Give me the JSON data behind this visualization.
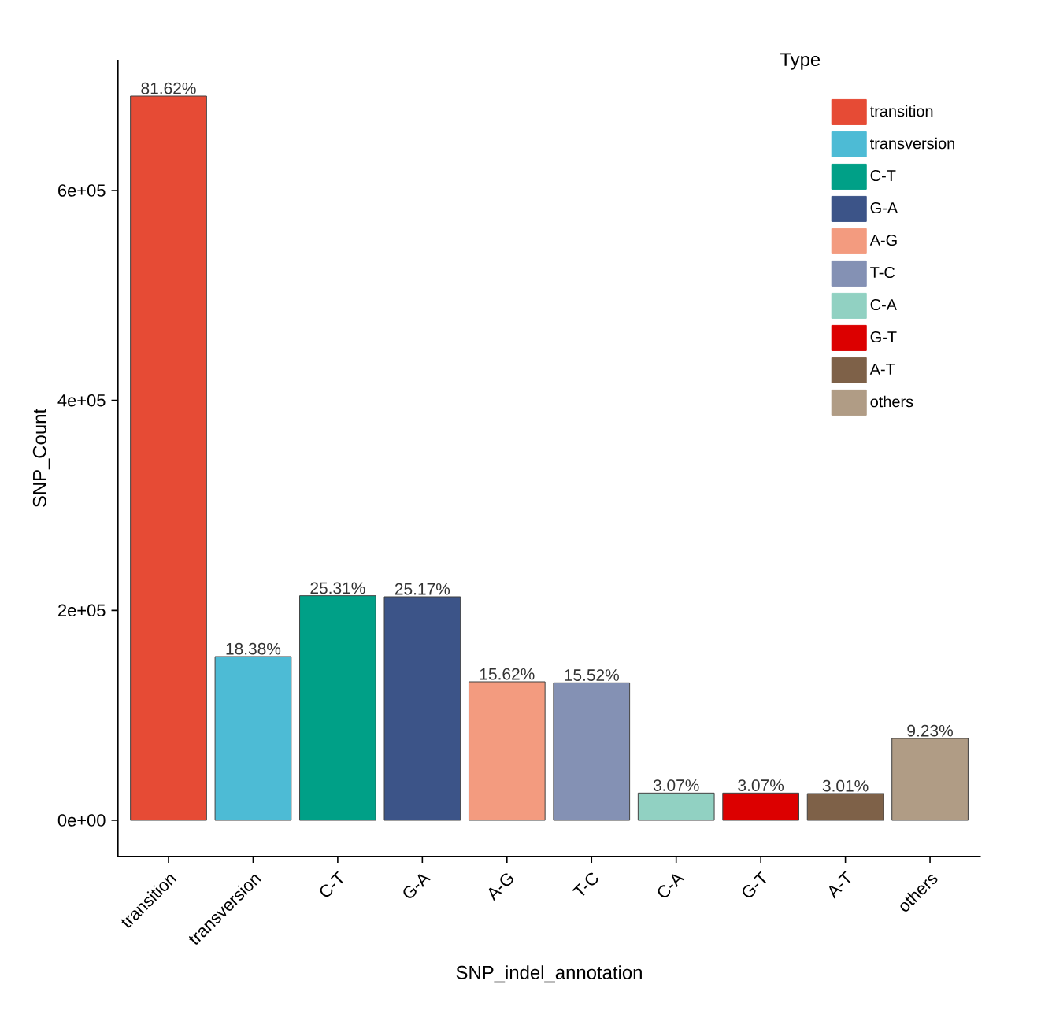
{
  "chart_data": {
    "type": "bar",
    "xlabel": "SNP_indel_annotation",
    "ylabel": "SNP_Count",
    "legend_title": "Type",
    "categories": [
      "transition",
      "transversion",
      "C-T",
      "G-A",
      "A-G",
      "T-C",
      "C-A",
      "G-T",
      "A-T",
      "others"
    ],
    "series": [
      {
        "name": "transition",
        "color": "#e64b35",
        "values": [
          690000,
          null,
          null,
          null,
          null,
          null,
          null,
          null,
          null,
          null
        ]
      },
      {
        "name": "transversion",
        "color": "#4dbbd5",
        "values": [
          null,
          156000,
          null,
          null,
          null,
          null,
          null,
          null,
          null,
          null
        ]
      },
      {
        "name": "C-T",
        "color": "#00a087",
        "values": [
          null,
          null,
          214000,
          null,
          null,
          null,
          null,
          null,
          null,
          null
        ]
      },
      {
        "name": "G-A",
        "color": "#3c5488",
        "values": [
          null,
          null,
          null,
          213000,
          null,
          null,
          null,
          null,
          null,
          null
        ]
      },
      {
        "name": "A-G",
        "color": "#f39b7f",
        "values": [
          null,
          null,
          null,
          null,
          132000,
          null,
          null,
          null,
          null,
          null
        ]
      },
      {
        "name": "T-C",
        "color": "#8491b4",
        "values": [
          null,
          null,
          null,
          null,
          null,
          131000,
          null,
          null,
          null,
          null
        ]
      },
      {
        "name": "C-A",
        "color": "#91d1c2",
        "values": [
          null,
          null,
          null,
          null,
          null,
          null,
          26000,
          null,
          null,
          null
        ]
      },
      {
        "name": "G-T",
        "color": "#dc0000",
        "values": [
          null,
          null,
          null,
          null,
          null,
          null,
          null,
          26000,
          null,
          null
        ]
      },
      {
        "name": "A-T",
        "color": "#7e6148",
        "values": [
          null,
          null,
          null,
          null,
          null,
          null,
          null,
          null,
          25500,
          null
        ]
      },
      {
        "name": "others",
        "color": "#b09c85",
        "values": [
          null,
          null,
          null,
          null,
          null,
          null,
          null,
          null,
          null,
          78000
        ]
      }
    ],
    "annotations": [
      {
        "text": "81.62%",
        "x": "transition",
        "y": 690000
      },
      {
        "text": "18.38%",
        "x": "transversion",
        "y": 156000
      },
      {
        "text": "25.31%",
        "x": "C-T",
        "y": 214000
      },
      {
        "text": "25.17%",
        "x": "G-A",
        "y": 213000
      },
      {
        "text": "15.62%",
        "x": "A-G",
        "y": 132000
      },
      {
        "text": "15.52%",
        "x": "T-C",
        "y": 131000
      },
      {
        "text": "3.07%",
        "x": "C-A",
        "y": 26000
      },
      {
        "text": "3.07%",
        "x": "G-T",
        "y": 26000
      },
      {
        "text": "3.01%",
        "x": "A-T",
        "y": 25500
      },
      {
        "text": "9.23%",
        "x": "others",
        "y": 78000
      }
    ],
    "ylim": [
      -34500,
      724500
    ],
    "yticks": [
      {
        "value": 0,
        "label": "0e+00"
      },
      {
        "value": 200000,
        "label": "2e+05"
      },
      {
        "value": 400000,
        "label": "4e+05"
      },
      {
        "value": 600000,
        "label": "6e+05"
      }
    ],
    "grid": false,
    "legend": "top right"
  }
}
